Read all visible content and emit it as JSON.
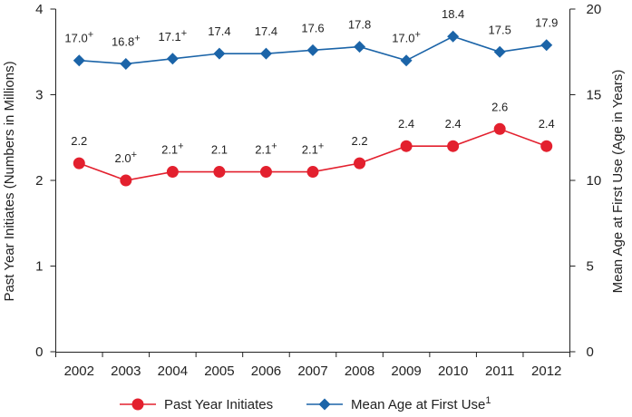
{
  "chart_data": {
    "type": "line",
    "title": "",
    "x": [
      "2002",
      "2003",
      "2004",
      "2005",
      "2006",
      "2007",
      "2008",
      "2009",
      "2010",
      "2011",
      "2012"
    ],
    "xlabel": "",
    "ylabel_left": "Past Year Initiates (Numbers in Millions)",
    "ylabel_right": "Mean Age at First Use (Age in Years)",
    "ylim_left": [
      0,
      4
    ],
    "yticks_left": [
      "0",
      "1",
      "2",
      "3",
      "4"
    ],
    "ylim_right": [
      0,
      20
    ],
    "yticks_right": [
      "0",
      "5",
      "10",
      "15",
      "20"
    ],
    "legend_position": "bottom-center",
    "series": [
      {
        "name": "Past Year Initiates",
        "axis": "left",
        "color": "#e3202e",
        "marker": "circle",
        "values": [
          2.2,
          2.0,
          2.1,
          2.1,
          2.1,
          2.1,
          2.2,
          2.4,
          2.4,
          2.6,
          2.4
        ],
        "labels": [
          "2.2",
          "2.0",
          "2.1",
          "2.1",
          "2.1",
          "2.1",
          "2.2",
          "2.4",
          "2.4",
          "2.6",
          "2.4"
        ],
        "significance": [
          "",
          "+",
          "+",
          "",
          "+",
          "+",
          "",
          "",
          "",
          "",
          ""
        ]
      },
      {
        "name": "Mean Age at First Use",
        "name_sup": "1",
        "axis": "right",
        "color": "#1b64a8",
        "marker": "diamond",
        "values": [
          17.0,
          16.8,
          17.1,
          17.4,
          17.4,
          17.6,
          17.8,
          17.0,
          18.4,
          17.5,
          17.9
        ],
        "labels": [
          "17.0",
          "16.8",
          "17.1",
          "17.4",
          "17.4",
          "17.6",
          "17.8",
          "17.0",
          "18.4",
          "17.5",
          "17.9"
        ],
        "significance": [
          "+",
          "+",
          "+",
          "",
          "",
          "",
          "",
          "+",
          "",
          "",
          ""
        ]
      }
    ]
  }
}
